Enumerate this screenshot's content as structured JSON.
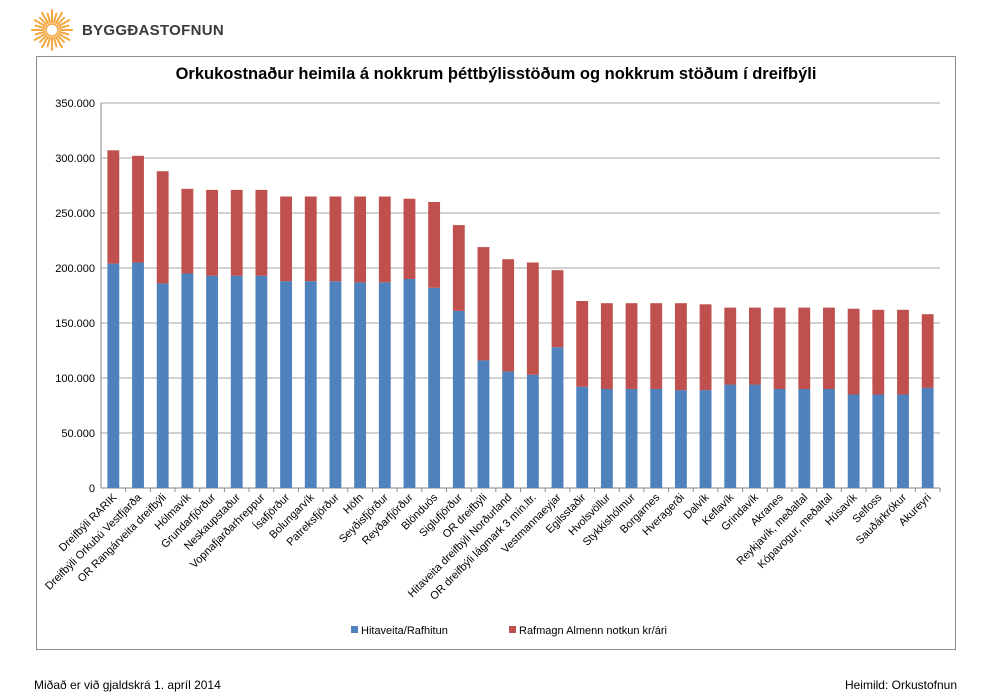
{
  "logo": {
    "text": "BYGGÐASTOFNUN",
    "icon": "sunburst-icon",
    "color": "#f4a742"
  },
  "footer": {
    "left": "Miðað er við gjaldskrá 1. apríl 2014",
    "right": "Heimild: Orkustofnun"
  },
  "colors": {
    "heating": "#4f81bd",
    "electricity": "#c0504d",
    "grid": "#a6a6a6"
  },
  "chart_data": {
    "type": "bar",
    "stacked": true,
    "title": "Orkukostnaður heimila á nokkrum þéttbýlisstöðum og nokkrum stöðum í dreifbýli",
    "xlabel": "",
    "ylabel": "",
    "ylim": [
      0,
      350000
    ],
    "yticks": [
      "0",
      "50.000",
      "100.000",
      "150.000",
      "200.000",
      "250.000",
      "300.000",
      "350.000"
    ],
    "grid": true,
    "legend_position": "bottom",
    "categories": [
      "Dreifbýli RARIK",
      "Dreifbýli Orkubú Vestfjarða",
      "OR Rangárveita dreifbýli",
      "Hólmavík",
      "Grundarfjörður",
      "Neskaupstaður",
      "Vopnafjarðarhreppur",
      "Ísafjörður",
      "Bolungarvík",
      "Patreksfjörður",
      "Höfn",
      "Seyðisfjörður",
      "Reyðarfjörður",
      "Blönduós",
      "Siglufjörður",
      "OR dreifbýli",
      "Hitaveita dreifbýli Norðurland",
      "OR dreifbýli lágmark 3 mín.ltr.",
      "Vestmannaeyjar",
      "Egilsstaðir",
      "Hvolsvöllur",
      "Stykkishólmur",
      "Borgarnes",
      "Hveragerði",
      "Dalvík",
      "Keflavík",
      "Grindavík",
      "Akranes",
      "Reykjavík, meðaltal",
      "Kópavogur, meðaltal",
      "Húsavík",
      "Selfoss",
      "Sauðárkrókur",
      "Akureyri"
    ],
    "series": [
      {
        "name": "Hitaveita/Rafhitun",
        "color": "#4f81bd",
        "values": [
          204000,
          205000,
          186000,
          195000,
          193000,
          193000,
          193000,
          188000,
          188000,
          188000,
          187000,
          187000,
          190000,
          182000,
          161000,
          116000,
          106000,
          103000,
          128000,
          92000,
          90000,
          90000,
          90000,
          89000,
          89000,
          94000,
          94000,
          90000,
          90000,
          90000,
          85000,
          85000,
          85000,
          91000
        ]
      },
      {
        "name": "Rafmagn Almenn notkun kr/ári",
        "color": "#c0504d",
        "values": [
          103000,
          97000,
          102000,
          77000,
          78000,
          78000,
          78000,
          77000,
          77000,
          77000,
          78000,
          78000,
          73000,
          78000,
          78000,
          103000,
          102000,
          102000,
          70000,
          78000,
          78000,
          78000,
          78000,
          79000,
          78000,
          70000,
          70000,
          74000,
          74000,
          74000,
          78000,
          77000,
          77000,
          67000
        ]
      }
    ]
  }
}
